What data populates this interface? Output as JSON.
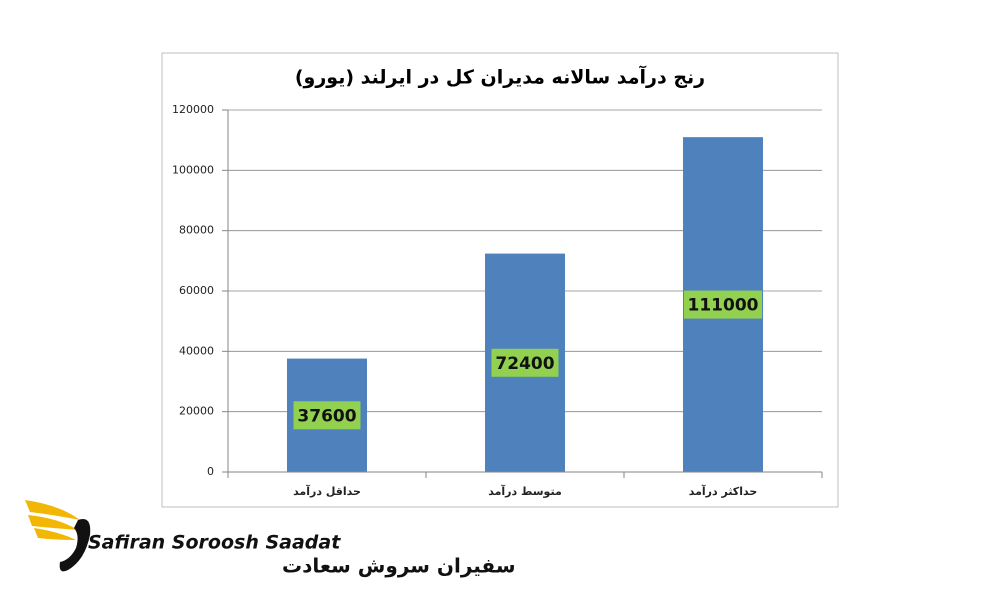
{
  "chart_data": {
    "type": "bar",
    "title": "رنج درآمد سالانه مدیران کل در ایرلند (یورو)",
    "categories": [
      "حداقل درآمد",
      "متوسط درآمد",
      "حداکثر درآمد"
    ],
    "values": [
      37600,
      72400,
      111000
    ],
    "color": "#4f81bd",
    "label_color": "#92d050",
    "ylim": [
      0,
      120000
    ],
    "yticks": [
      0,
      20000,
      40000,
      60000,
      80000,
      100000,
      120000
    ],
    "grid": true
  },
  "logo": {
    "name": "Safiran Soroosh Saadat",
    "name_fa": "سفیران سروش سعادت"
  }
}
